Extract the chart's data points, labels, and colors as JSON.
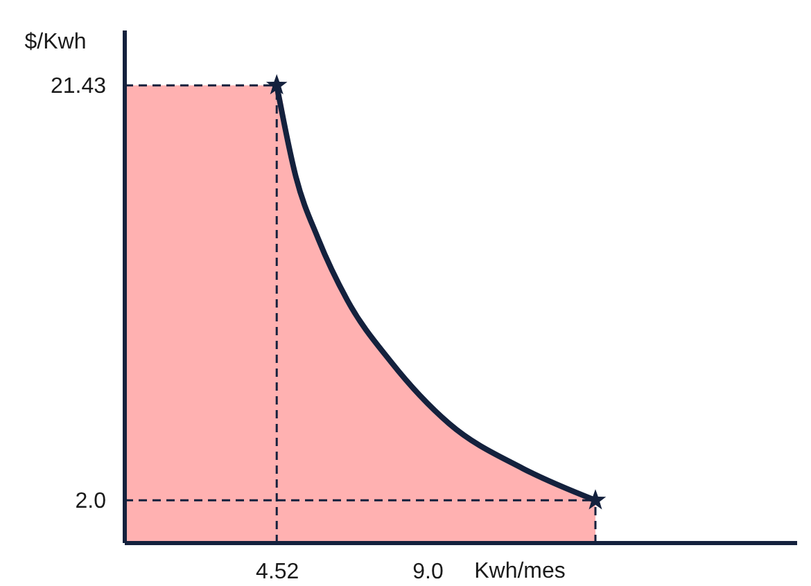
{
  "chart_data": {
    "type": "line",
    "xlabel": "Kwh/mes",
    "ylabel": "$/Kwh",
    "xlim": [
      0,
      20.0
    ],
    "ylim": [
      0,
      24.0
    ],
    "xticks": [
      4.52,
      {
        "value": 9.0,
        "label": "9.0"
      }
    ],
    "yticks": [
      21.43,
      {
        "value": 2.0,
        "label": "2.0"
      }
    ],
    "series": [
      {
        "type": "area",
        "color": "#ff2020",
        "x": [
          0,
          4.52,
          5.09,
          5.75,
          6.62,
          7.92,
          9.65,
          11.83,
          14.0
        ],
        "values": [
          21.43,
          21.43,
          17.15,
          14.26,
          11.37,
          8.48,
          5.59,
          3.5,
          2.0
        ]
      },
      {
        "color": "#14213d",
        "marker": "none",
        "x": [
          4.52,
          5.09,
          5.75,
          6.62,
          7.92,
          9.65,
          11.83,
          14.0
        ],
        "values": [
          21.43,
          17.15,
          14.26,
          11.37,
          8.48,
          5.59,
          3.5,
          2.0
        ]
      },
      {
        "type": "scatter",
        "color": "#14213d",
        "marker": "star",
        "x": [
          4.52,
          14.0
        ],
        "values": [
          21.43,
          2.0
        ]
      }
    ],
    "ref_lines": [
      {
        "axis": "y",
        "value": 21.43,
        "line_style": "dashed",
        "color": "#14213d"
      },
      {
        "axis": "x",
        "value": 4.52,
        "line_style": "dashed",
        "color": "#14213d"
      },
      {
        "axis": "y",
        "value": 2.0,
        "line_style": "dashed",
        "color": "#14213d"
      },
      {
        "axis": "x",
        "value": 14.0,
        "line_style": "dashed",
        "color": "#14213d"
      }
    ],
    "grid": false
  }
}
